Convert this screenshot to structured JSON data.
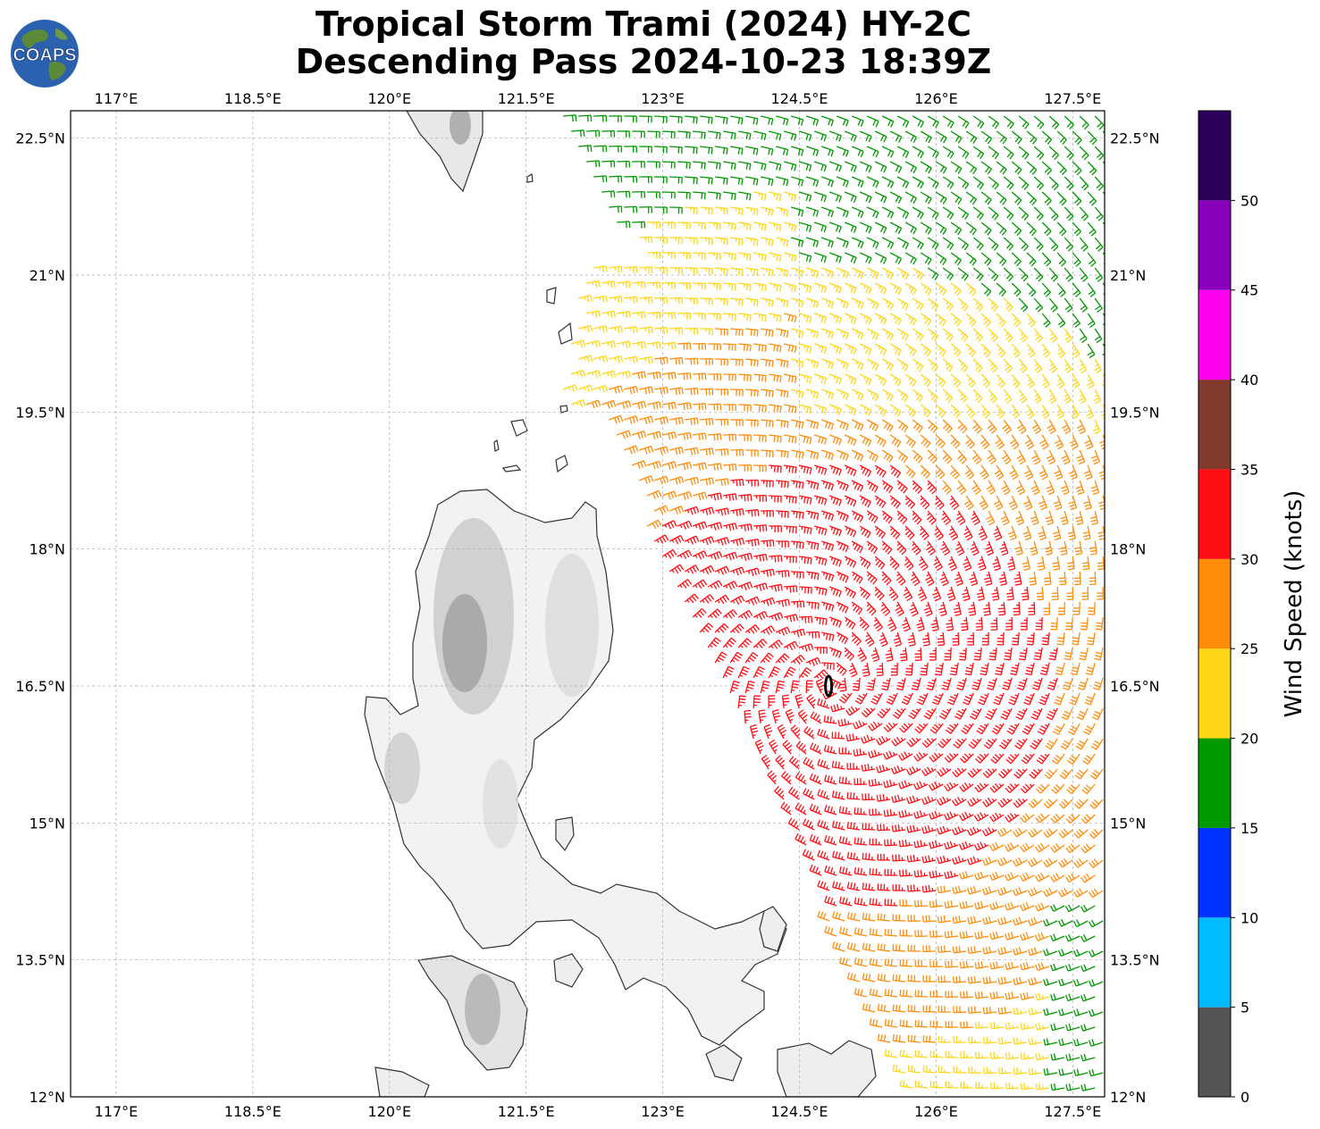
{
  "header": {
    "title_line1": "Tropical Storm Trami (2024) HY-2C",
    "title_line2": "Descending Pass 2024-10-23 18:39Z",
    "logo_text": "COAPS"
  },
  "map": {
    "lon_range": [
      116.5,
      127.85
    ],
    "lat_range": [
      12.0,
      22.8
    ],
    "lon_ticks": [
      {
        "value": 117.0,
        "label": "117°E"
      },
      {
        "value": 118.5,
        "label": "118.5°E"
      },
      {
        "value": 120.0,
        "label": "120°E"
      },
      {
        "value": 121.5,
        "label": "121.5°E"
      },
      {
        "value": 123.0,
        "label": "123°E"
      },
      {
        "value": 124.5,
        "label": "124.5°E"
      },
      {
        "value": 126.0,
        "label": "126°E"
      },
      {
        "value": 127.5,
        "label": "127.5°E"
      }
    ],
    "lat_ticks": [
      {
        "value": 22.5,
        "label": "22.5°N"
      },
      {
        "value": 21.0,
        "label": "21°N"
      },
      {
        "value": 19.5,
        "label": "19.5°N"
      },
      {
        "value": 18.0,
        "label": "18°N"
      },
      {
        "value": 16.5,
        "label": "16.5°N"
      },
      {
        "value": 15.0,
        "label": "15°N"
      },
      {
        "value": 13.5,
        "label": "13.5°N"
      },
      {
        "value": 12.0,
        "label": "12°N"
      }
    ],
    "storm_center": {
      "lon": 124.82,
      "lat": 16.5
    }
  },
  "colorbar": {
    "label": "Wind Speed (knots)",
    "bins": [
      {
        "from": 0,
        "to": 5,
        "color": "#555555"
      },
      {
        "from": 5,
        "to": 10,
        "color": "#00bbff"
      },
      {
        "from": 10,
        "to": 15,
        "color": "#0033ff"
      },
      {
        "from": 15,
        "to": 20,
        "color": "#009900"
      },
      {
        "from": 20,
        "to": 25,
        "color": "#ffd616"
      },
      {
        "from": 25,
        "to": 30,
        "color": "#ff8c0a"
      },
      {
        "from": 30,
        "to": 35,
        "color": "#ff0f14"
      },
      {
        "from": 35,
        "to": 40,
        "color": "#813a2b"
      },
      {
        "from": 40,
        "to": 45,
        "color": "#ff00ee"
      },
      {
        "from": 45,
        "to": 50,
        "color": "#8800bb"
      },
      {
        "from": 50,
        "to": 55,
        "color": "#2a005c"
      }
    ],
    "tick_labels": [
      "0",
      "5",
      "10",
      "15",
      "20",
      "25",
      "30",
      "35",
      "40",
      "45",
      "50"
    ]
  }
}
